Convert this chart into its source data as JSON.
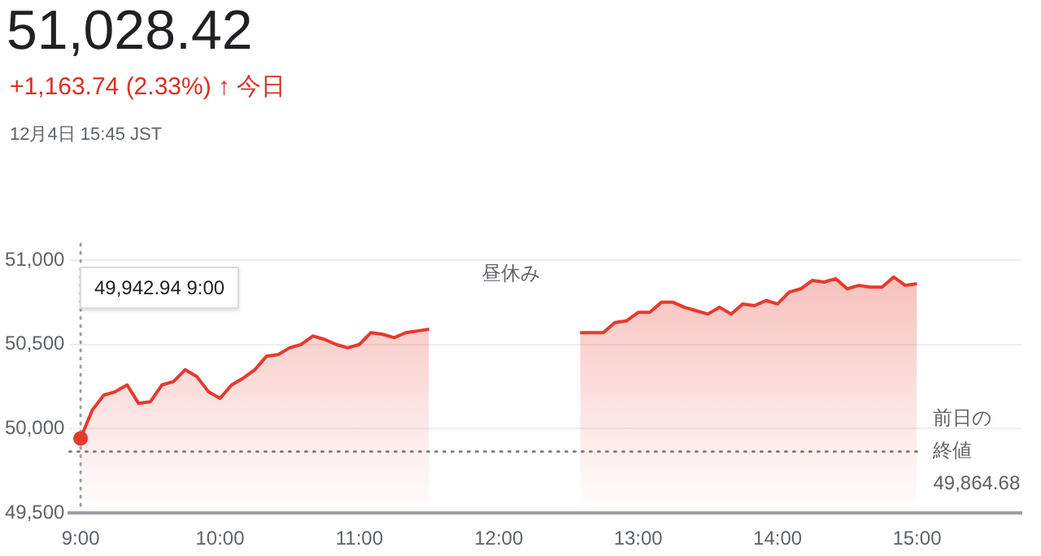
{
  "chart_data": {
    "type": "area",
    "title": "51,028.42",
    "subtitle": "+1,163.74 (2.33%) ↑ 今日",
    "annotations": [
      "12月4日 15:45 JST",
      "49,942.94 9:00",
      "昼休み"
    ],
    "series": [
      {
        "color": "#e8392d",
        "x": [
          9,
          9.0833,
          9.1667,
          9.25,
          9.3333,
          9.4167,
          9.5,
          9.5833,
          9.6667,
          9.75,
          9.8333,
          9.9167,
          10,
          10.0833,
          10.1667,
          10.25,
          10.3333,
          10.4167,
          10.5,
          10.5833,
          10.6667,
          10.75,
          10.8333,
          10.9167,
          11,
          11.0833,
          11.1667,
          11.25,
          11.3333,
          11.4167,
          11.5
        ],
        "values": [
          49942.94,
          50110,
          50200,
          50220,
          50260,
          50150,
          50160,
          50260,
          50280,
          50350,
          50310,
          50220,
          50180,
          50260,
          50300,
          50350,
          50430,
          50440,
          50480,
          50500,
          50550,
          50530,
          50500,
          50480,
          50500,
          50570,
          50560,
          50540,
          50570,
          50580,
          50590
        ]
      },
      {
        "color": "#e8392d",
        "x": [
          12.5833,
          12.6667,
          12.75,
          12.8333,
          12.9167,
          13,
          13.0833,
          13.1667,
          13.25,
          13.3333,
          13.4167,
          13.5,
          13.5833,
          13.6667,
          13.75,
          13.8333,
          13.9167,
          14,
          14.0833,
          14.1667,
          14.25,
          14.3333,
          14.4167,
          14.5,
          14.5833,
          14.6667,
          14.75,
          14.8333,
          14.9167,
          15
        ],
        "values": [
          50570,
          50570,
          50570,
          50630,
          50640,
          50690,
          50690,
          50750,
          50750,
          50720,
          50700,
          50680,
          50720,
          50680,
          50740,
          50730,
          50760,
          50740,
          50810,
          50830,
          50880,
          50870,
          50890,
          50830,
          50850,
          50840,
          50840,
          50900,
          50850,
          50860
        ]
      }
    ],
    "xlim": [
      8.92,
      15.75
    ],
    "xticks": [
      {
        "value": 9,
        "label": "9:00"
      },
      {
        "value": 10,
        "label": "10:00"
      },
      {
        "value": 11,
        "label": "11:00"
      },
      {
        "value": 12,
        "label": "12:00"
      },
      {
        "value": 13,
        "label": "13:00"
      },
      {
        "value": 14,
        "label": "14:00"
      },
      {
        "value": 15,
        "label": "15:00"
      }
    ],
    "ylim": [
      49500,
      51000
    ],
    "yticks": [
      {
        "value": 49500,
        "label": "49,500"
      },
      {
        "value": 50000,
        "label": "50,000"
      },
      {
        "value": 50500,
        "label": "50,500"
      },
      {
        "value": 51000,
        "label": "51,000"
      }
    ],
    "ref_lines": [
      {
        "axis": "y",
        "value": 49864.68,
        "label": "前日の終値49,864.68",
        "line_style": "dotted",
        "color": "#80868b"
      },
      {
        "axis": "x",
        "value": 9,
        "line_style": "dotted",
        "color": "#9aa0a6"
      }
    ],
    "grid": "y",
    "legend": false,
    "marker": "none",
    "line_style": "solid"
  }
}
